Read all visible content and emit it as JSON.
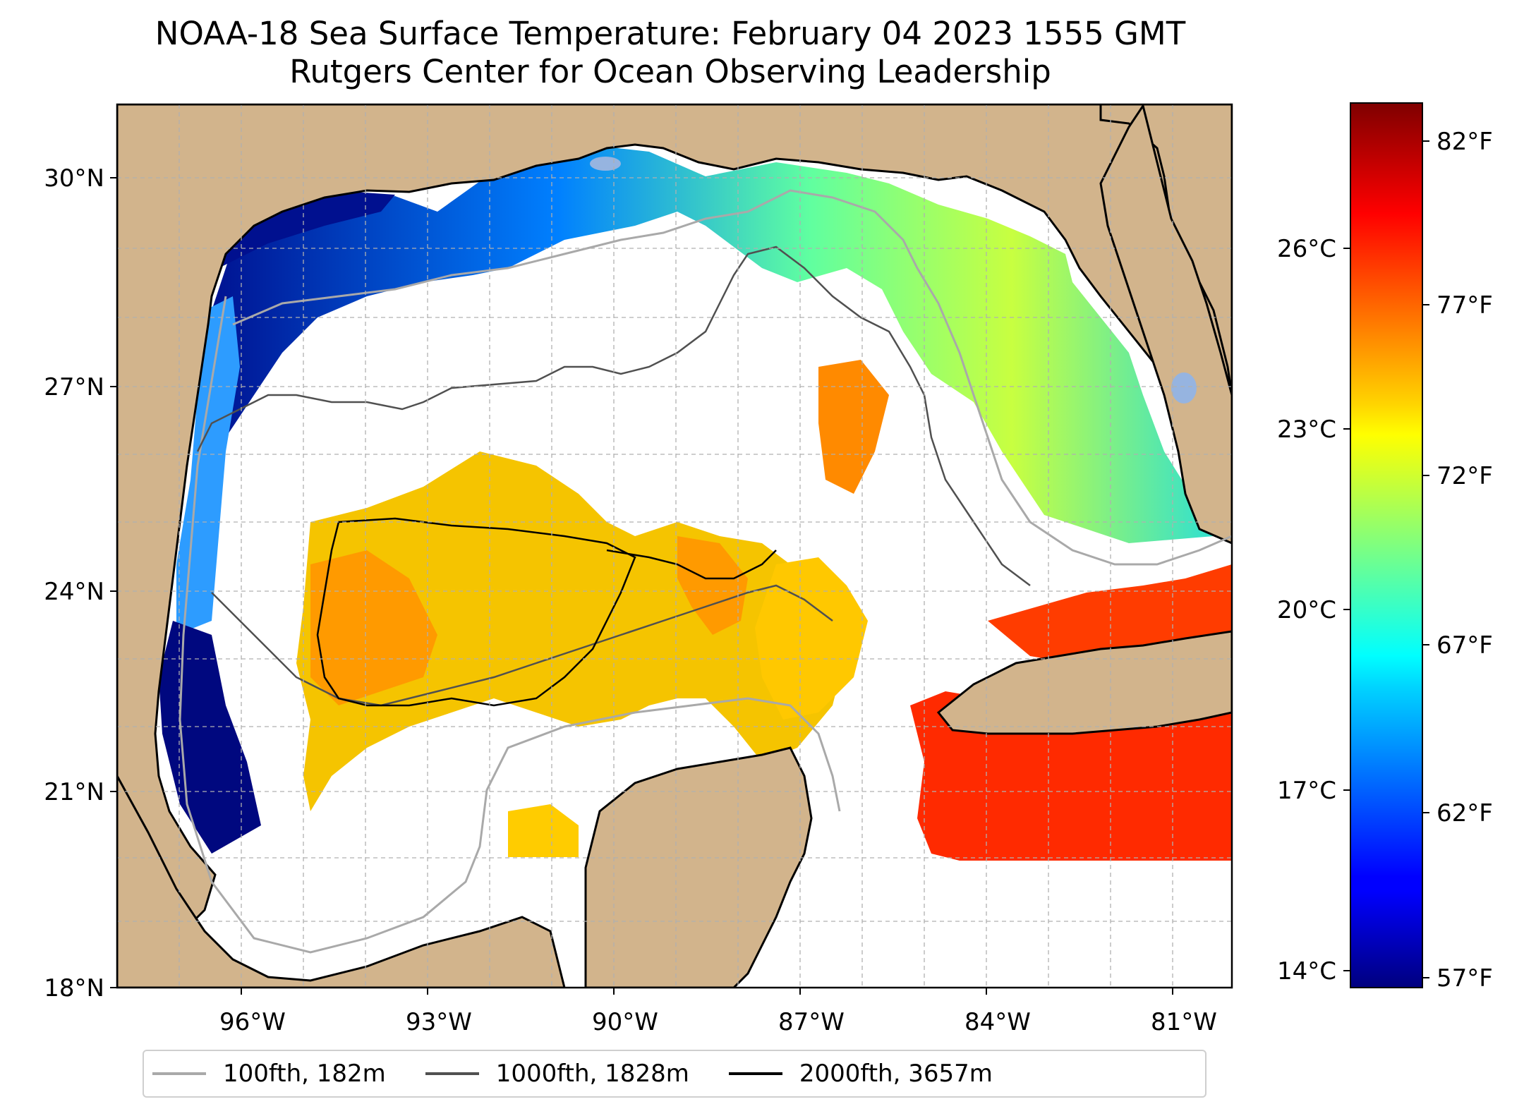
{
  "title": {
    "line1": "NOAA-18 Sea Surface Temperature: February 04 2023 1555 GMT",
    "line2": "Rutgers Center for Ocean Observing Leadership"
  },
  "map": {
    "lat_labels": [
      "30°N",
      "27°N",
      "24°N",
      "21°N",
      "18°N"
    ],
    "lon_labels": [
      "96°W",
      "93°W",
      "90°W",
      "87°W",
      "84°W",
      "81°W"
    ],
    "lon_range": [
      -98.3,
      -80.4
    ],
    "lat_range": [
      18.0,
      31.0
    ],
    "land_color": "#d2b48c",
    "gridlines": true
  },
  "colorbar": {
    "colormap": "jet",
    "celsius_labels": [
      "26°C",
      "23°C",
      "20°C",
      "17°C",
      "14°C"
    ],
    "fahrenheit_labels": [
      "82°F",
      "77°F",
      "72°F",
      "67°F",
      "62°F",
      "57°F"
    ],
    "range_f": [
      56,
      83
    ]
  },
  "legend": {
    "entries": [
      {
        "label": "100fth, 182m",
        "color": "#a9a9a9"
      },
      {
        "label": "1000fth, 1828m",
        "color": "#505050"
      },
      {
        "label": "2000fth, 3657m",
        "color": "#000000"
      }
    ]
  }
}
